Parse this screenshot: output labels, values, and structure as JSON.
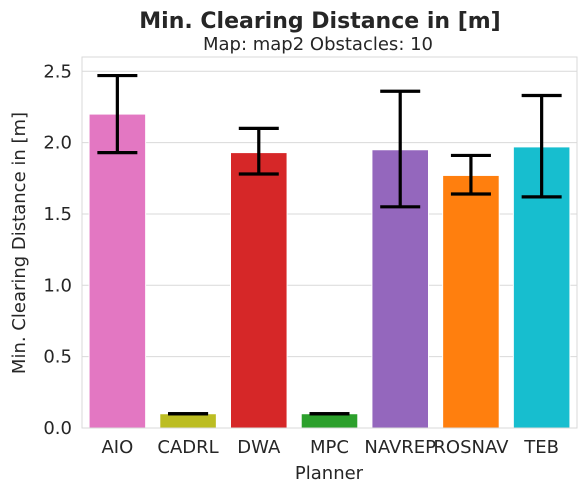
{
  "chart_data": {
    "type": "bar",
    "title": "Min. Clearing Distance in [m]",
    "subtitle": "Map: map2 Obstacles: 10",
    "xlabel": "Planner",
    "ylabel": "Min. Clearing Distance in [m]",
    "ylim": [
      0,
      2.6
    ],
    "yticks": [
      0.0,
      0.5,
      1.0,
      1.5,
      2.0,
      2.5
    ],
    "ytick_labels": [
      "0.0",
      "0.5",
      "1.0",
      "1.5",
      "2.0",
      "2.5"
    ],
    "grid": "horizontal",
    "categories": [
      "AIO",
      "CADRL",
      "DWA",
      "MPC",
      "NAVREP",
      "ROSNAV",
      "TEB"
    ],
    "values": [
      2.2,
      0.1,
      1.93,
      0.1,
      1.95,
      1.77,
      1.97
    ],
    "error_low": [
      1.93,
      0.1,
      1.78,
      0.1,
      1.55,
      1.64,
      1.62
    ],
    "error_high": [
      2.47,
      0.1,
      2.1,
      0.1,
      2.36,
      1.91,
      2.33
    ],
    "colors": [
      "#e377c2",
      "#bcbd22",
      "#d62728",
      "#2ca02c",
      "#9467bd",
      "#ff7f0e",
      "#17becf"
    ]
  }
}
